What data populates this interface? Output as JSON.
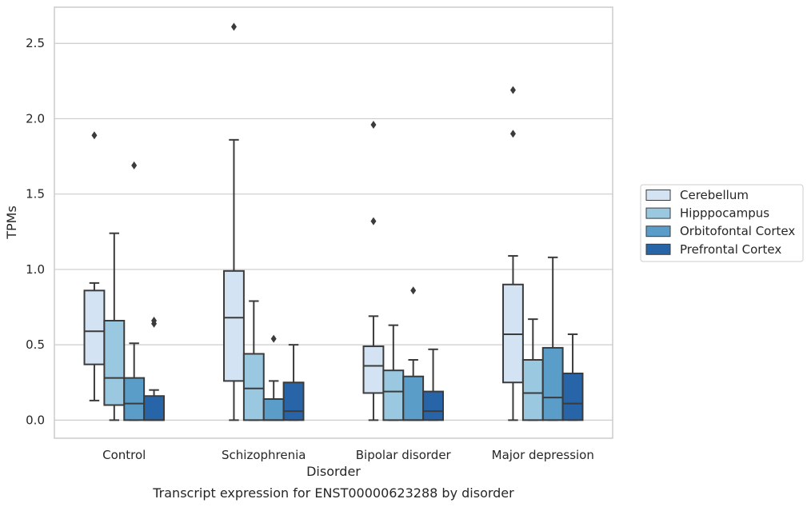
{
  "chart_data": {
    "type": "box",
    "title": "",
    "caption": "Transcript expression for ENST00000623288 by disorder",
    "xlabel": "Disorder",
    "ylabel": "TPMs",
    "ylim": [
      -0.12,
      2.74
    ],
    "yticks": [
      "0.0",
      "0.5",
      "1.0",
      "1.5",
      "2.0",
      "2.5"
    ],
    "grid": "horizontal",
    "legend_position": "right",
    "categories": [
      "Control",
      "Schizophrenia",
      "Bipolar disorder",
      "Major depression"
    ],
    "series": [
      {
        "name": "Cerebellum",
        "color": "#d3e3f3",
        "boxes": [
          {
            "min": 0.13,
            "q1": 0.37,
            "median": 0.59,
            "q3": 0.86,
            "max": 0.91,
            "outliers": [
              1.89
            ]
          },
          {
            "min": 0.0,
            "q1": 0.26,
            "median": 0.68,
            "q3": 0.99,
            "max": 1.86,
            "outliers": [
              2.61
            ]
          },
          {
            "min": 0.0,
            "q1": 0.18,
            "median": 0.36,
            "q3": 0.49,
            "max": 0.69,
            "outliers": [
              1.32,
              1.96
            ]
          },
          {
            "min": 0.0,
            "q1": 0.25,
            "median": 0.57,
            "q3": 0.9,
            "max": 1.09,
            "outliers": [
              1.9,
              2.19
            ]
          }
        ]
      },
      {
        "name": "Hipppocampus",
        "color": "#9ac8e0",
        "boxes": [
          {
            "min": 0.0,
            "q1": 0.1,
            "median": 0.28,
            "q3": 0.66,
            "max": 1.24,
            "outliers": []
          },
          {
            "min": 0.0,
            "q1": 0.0,
            "median": 0.21,
            "q3": 0.44,
            "max": 0.79,
            "outliers": []
          },
          {
            "min": 0.0,
            "q1": 0.0,
            "median": 0.19,
            "q3": 0.33,
            "max": 0.63,
            "outliers": []
          },
          {
            "min": 0.0,
            "q1": 0.0,
            "median": 0.18,
            "q3": 0.4,
            "max": 0.67,
            "outliers": []
          }
        ]
      },
      {
        "name": "Orbitofontal Cortex",
        "color": "#5a9dc9",
        "boxes": [
          {
            "min": 0.0,
            "q1": 0.0,
            "median": 0.11,
            "q3": 0.28,
            "max": 0.51,
            "outliers": [
              1.69
            ]
          },
          {
            "min": 0.0,
            "q1": 0.0,
            "median": 0.0,
            "q3": 0.14,
            "max": 0.26,
            "outliers": [
              0.54
            ]
          },
          {
            "min": 0.0,
            "q1": 0.0,
            "median": 0.0,
            "q3": 0.29,
            "max": 0.4,
            "outliers": [
              0.86
            ]
          },
          {
            "min": 0.0,
            "q1": 0.0,
            "median": 0.15,
            "q3": 0.48,
            "max": 1.08,
            "outliers": []
          }
        ]
      },
      {
        "name": "Prefrontal Cortex",
        "color": "#2865a8",
        "boxes": [
          {
            "min": 0.0,
            "q1": 0.0,
            "median": 0.0,
            "q3": 0.16,
            "max": 0.2,
            "outliers": [
              0.64,
              0.66
            ]
          },
          {
            "min": 0.0,
            "q1": 0.0,
            "median": 0.06,
            "q3": 0.25,
            "max": 0.5,
            "outliers": []
          },
          {
            "min": 0.0,
            "q1": 0.0,
            "median": 0.06,
            "q3": 0.19,
            "max": 0.47,
            "outliers": []
          },
          {
            "min": 0.0,
            "q1": 0.0,
            "median": 0.11,
            "q3": 0.31,
            "max": 0.57,
            "outliers": []
          }
        ]
      }
    ]
  }
}
